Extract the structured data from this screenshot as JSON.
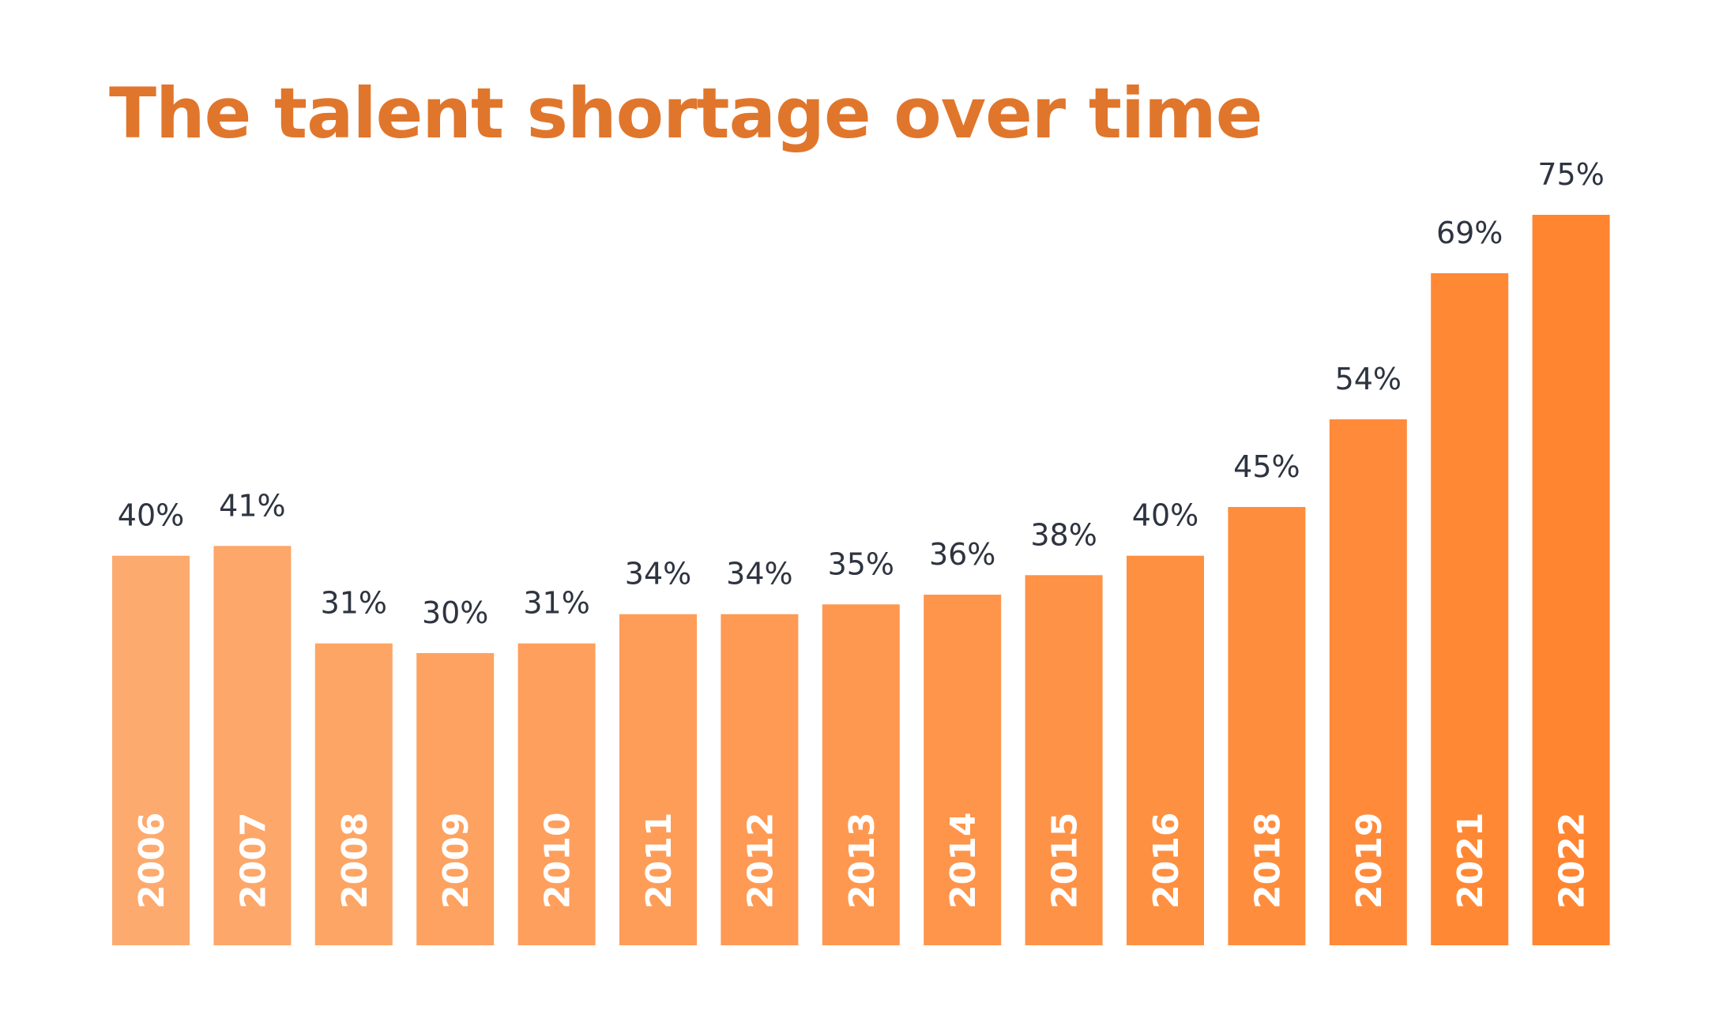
{
  "chart_data": {
    "type": "bar",
    "title": "The talent shortage over time",
    "categories": [
      "2006",
      "2007",
      "2008",
      "2009",
      "2010",
      "2011",
      "2012",
      "2013",
      "2014",
      "2015",
      "2016",
      "2018",
      "2019",
      "2021",
      "2022"
    ],
    "values": [
      40,
      41,
      31,
      30,
      31,
      34,
      34,
      35,
      36,
      38,
      40,
      45,
      54,
      69,
      75
    ],
    "value_labels": [
      "40%",
      "41%",
      "31%",
      "30%",
      "31%",
      "34%",
      "34%",
      "35%",
      "36%",
      "38%",
      "40%",
      "45%",
      "54%",
      "69%",
      "75%"
    ],
    "unit": "%",
    "ylim": [
      0,
      75
    ],
    "grid": false,
    "legend": "none",
    "category_label_placement": "inside-bar-rotated",
    "colors": {
      "title": "#e0762c",
      "bar_start": "#fdaa6e",
      "bar_end": "#ff8531",
      "value_label": "#2e3440",
      "category_label": "#ffffff"
    }
  }
}
